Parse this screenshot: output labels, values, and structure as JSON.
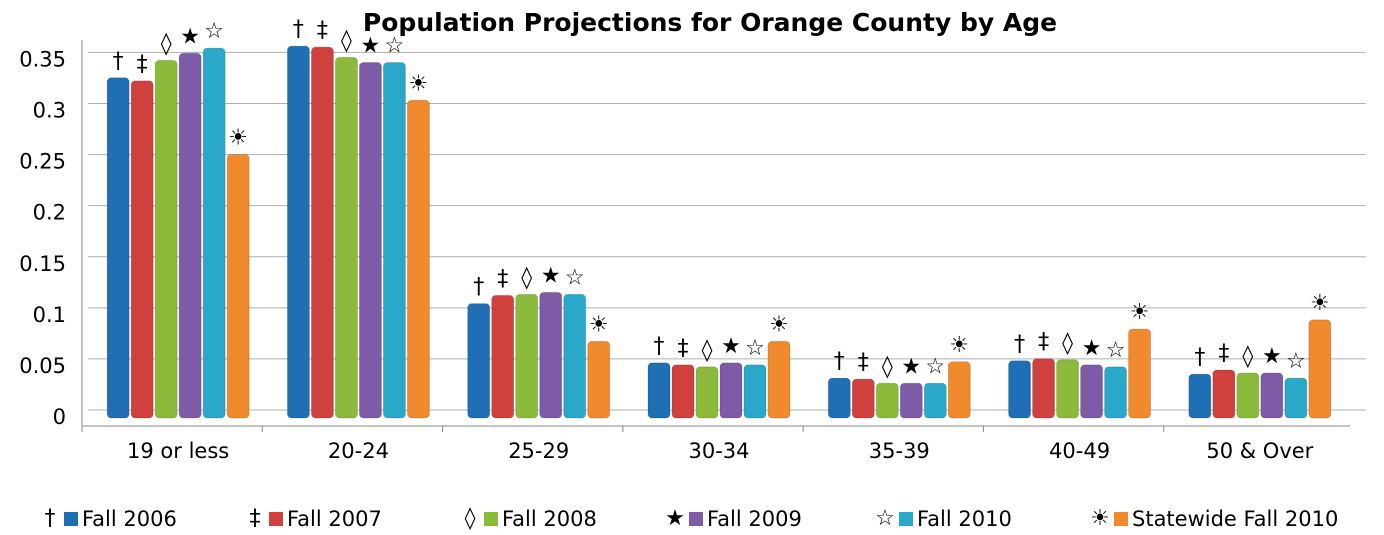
{
  "chart_data": {
    "type": "bar",
    "title": "Population Projections for Orange County by Age",
    "categories": [
      "19 or less",
      "20-24",
      "25-29",
      "30-34",
      "35-39",
      "40-49",
      "50 & Over"
    ],
    "series": [
      {
        "name": "Fall 2006",
        "symbol": "†",
        "color": "#1f6fb5",
        "values": [
          0.333,
          0.364,
          0.112,
          0.054,
          0.039,
          0.056,
          0.043
        ]
      },
      {
        "name": "Fall 2007",
        "symbol": "‡",
        "color": "#d0413e",
        "values": [
          0.33,
          0.363,
          0.12,
          0.052,
          0.038,
          0.058,
          0.047
        ]
      },
      {
        "name": "Fall 2008",
        "symbol": "◊",
        "color": "#8cbb3c",
        "values": [
          0.35,
          0.353,
          0.121,
          0.05,
          0.034,
          0.057,
          0.044
        ]
      },
      {
        "name": "Fall 2009",
        "symbol": "★",
        "color": "#7d5ba6",
        "values": [
          0.357,
          0.348,
          0.123,
          0.054,
          0.034,
          0.052,
          0.044
        ]
      },
      {
        "name": "Fall 2010",
        "symbol": "☆",
        "color": "#2aa8c9",
        "values": [
          0.362,
          0.348,
          0.121,
          0.052,
          0.034,
          0.05,
          0.039
        ]
      },
      {
        "name": "Statewide Fall 2010",
        "symbol": "☀",
        "color": "#f08a2c",
        "values": [
          0.258,
          0.311,
          0.075,
          0.075,
          0.055,
          0.087,
          0.096
        ]
      }
    ],
    "ylim": [
      0,
      0.37
    ],
    "yticks": [
      0,
      0.05,
      0.1,
      0.15,
      0.2,
      0.25,
      0.3,
      0.35
    ],
    "grid": true
  }
}
